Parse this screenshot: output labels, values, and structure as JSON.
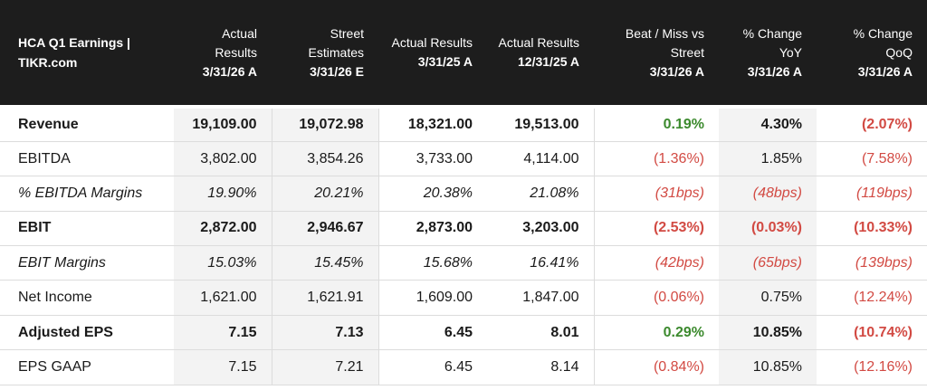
{
  "header": {
    "title_line1": "HCA Q1 Earnings |",
    "title_line2": "TIKR.com",
    "columns": [
      {
        "label": "Actual Results",
        "date": "3/31/26 A"
      },
      {
        "label": "Street Estimates",
        "date": "3/31/26 E"
      },
      {
        "label": "Actual Results",
        "date": "3/31/25 A"
      },
      {
        "label": "Actual Results",
        "date": "12/31/25 A"
      },
      {
        "label": "Beat / Miss vs Street",
        "date": "3/31/26 A"
      },
      {
        "label": "% Change YoY",
        "date": "3/31/26 A"
      },
      {
        "label": "% Change QoQ",
        "date": "3/31/26 A"
      }
    ]
  },
  "rows": [
    {
      "label": "Revenue",
      "actual_q1_26": "19,109.00",
      "street_q1_26": "19,072.98",
      "actual_q1_25": "18,321.00",
      "actual_q4_25": "19,513.00",
      "beat_miss": "0.19%",
      "yoy": "4.30%",
      "qoq": "(2.07%)"
    },
    {
      "label": "EBITDA",
      "actual_q1_26": "3,802.00",
      "street_q1_26": "3,854.26",
      "actual_q1_25": "3,733.00",
      "actual_q4_25": "4,114.00",
      "beat_miss": "(1.36%)",
      "yoy": "1.85%",
      "qoq": "(7.58%)"
    },
    {
      "label": "% EBITDA Margins",
      "actual_q1_26": "19.90%",
      "street_q1_26": "20.21%",
      "actual_q1_25": "20.38%",
      "actual_q4_25": "21.08%",
      "beat_miss": "(31bps)",
      "yoy": "(48bps)",
      "qoq": "(119bps)"
    },
    {
      "label": "EBIT",
      "actual_q1_26": "2,872.00",
      "street_q1_26": "2,946.67",
      "actual_q1_25": "2,873.00",
      "actual_q4_25": "3,203.00",
      "beat_miss": "(2.53%)",
      "yoy": "(0.03%)",
      "qoq": "(10.33%)"
    },
    {
      "label": "EBIT Margins",
      "actual_q1_26": "15.03%",
      "street_q1_26": "15.45%",
      "actual_q1_25": "15.68%",
      "actual_q4_25": "16.41%",
      "beat_miss": "(42bps)",
      "yoy": "(65bps)",
      "qoq": "(139bps)"
    },
    {
      "label": "Net Income",
      "actual_q1_26": "1,621.00",
      "street_q1_26": "1,621.91",
      "actual_q1_25": "1,609.00",
      "actual_q4_25": "1,847.00",
      "beat_miss": "(0.06%)",
      "yoy": "0.75%",
      "qoq": "(12.24%)"
    },
    {
      "label": "Adjusted EPS",
      "actual_q1_26": "7.15",
      "street_q1_26": "7.13",
      "actual_q1_25": "6.45",
      "actual_q4_25": "8.01",
      "beat_miss": "0.29%",
      "yoy": "10.85%",
      "qoq": "(10.74%)"
    },
    {
      "label": "EPS GAAP",
      "actual_q1_26": "7.15",
      "street_q1_26": "7.21",
      "actual_q1_25": "6.45",
      "actual_q4_25": "8.14",
      "beat_miss": "(0.84%)",
      "yoy": "10.85%",
      "qoq": "(12.16%)"
    }
  ],
  "colors": {
    "header_bg": "#1d1d1d",
    "positive": "#3c8a2e",
    "negative": "#d24a43",
    "shade": "#f3f3f3"
  }
}
